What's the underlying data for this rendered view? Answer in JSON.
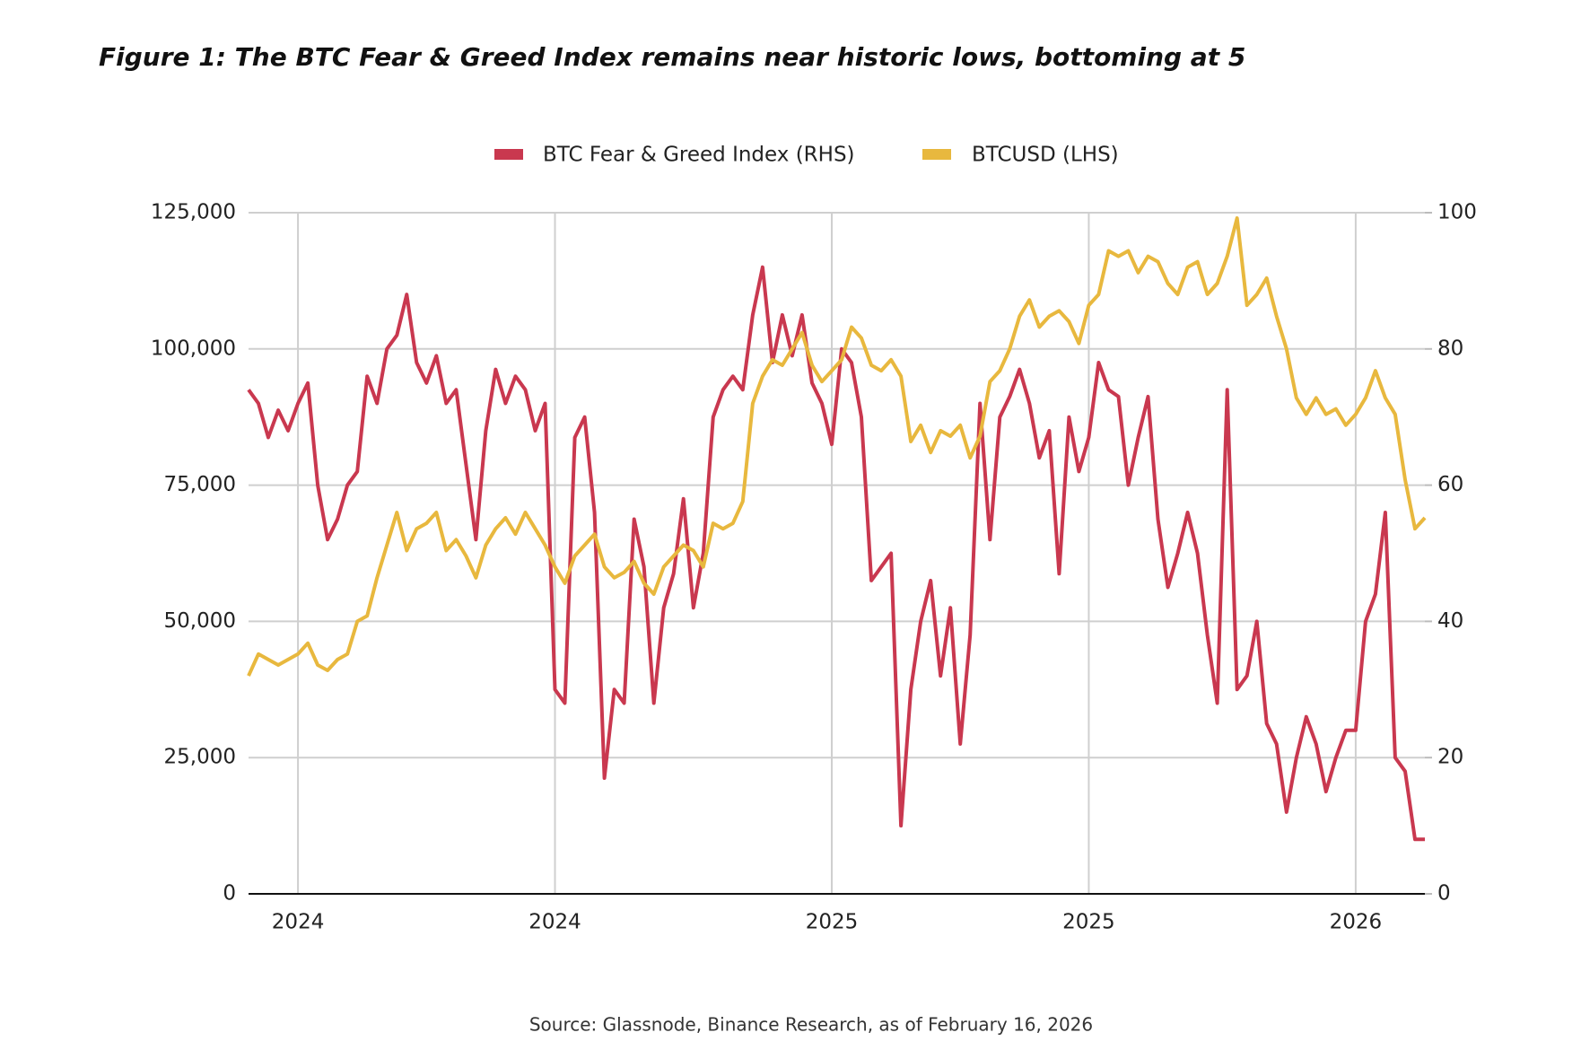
{
  "chart_data": {
    "type": "line",
    "title": "Figure 1: The BTC Fear & Greed Index remains near historic lows, bottoming at 5",
    "source": "Source: Glassnode, Binance Research, as of February 16, 2026",
    "categories": [
      null,
      null,
      null,
      null,
      null,
      "2024",
      null,
      null,
      null,
      null,
      null,
      null,
      null,
      null,
      null,
      null,
      null,
      null,
      null,
      null,
      null,
      null,
      null,
      null,
      null,
      null,
      null,
      null,
      null,
      null,
      null,
      "2024",
      null,
      null,
      null,
      null,
      null,
      null,
      null,
      null,
      null,
      null,
      null,
      null,
      null,
      null,
      null,
      null,
      null,
      null,
      null,
      null,
      null,
      null,
      null,
      null,
      null,
      null,
      null,
      "2025",
      null,
      null,
      null,
      null,
      null,
      null,
      null,
      null,
      null,
      null,
      null,
      null,
      null,
      null,
      null,
      null,
      null,
      null,
      null,
      null,
      null,
      null,
      null,
      null,
      null,
      "2025",
      null,
      null,
      null,
      null,
      null,
      null,
      null,
      null,
      null,
      null,
      null,
      null,
      null,
      null,
      null,
      null,
      null,
      null,
      null,
      null,
      null,
      null,
      null,
      null,
      null,
      null,
      "2026",
      null,
      null,
      null,
      null,
      null,
      null,
      null
    ],
    "series": [
      {
        "name": "BTC Fear & Greed Index (RHS)",
        "color": "#c9384f",
        "axis": "y2",
        "values": [
          74,
          72,
          67,
          71,
          68,
          72,
          75,
          60,
          52,
          55,
          60,
          62,
          76,
          72,
          80,
          82,
          88,
          78,
          75,
          79,
          72,
          74,
          63,
          52,
          68,
          77,
          72,
          76,
          74,
          68,
          72,
          30,
          28,
          67,
          70,
          56,
          17,
          30,
          28,
          55,
          48,
          28,
          42,
          47,
          58,
          42,
          50,
          70,
          74,
          76,
          74,
          85,
          92,
          78,
          85,
          79,
          85,
          75,
          72,
          66,
          80,
          78,
          70,
          46,
          48,
          50,
          10,
          30,
          40,
          46,
          32,
          42,
          22,
          38,
          72,
          52,
          70,
          73,
          77,
          72,
          64,
          68,
          47,
          70,
          62,
          67,
          78,
          74,
          73,
          60,
          67,
          73,
          55,
          45,
          50,
          56,
          50,
          38,
          28,
          74,
          30,
          32,
          40,
          25,
          22,
          12,
          20,
          26,
          22,
          15,
          20,
          24,
          24,
          40,
          44,
          56,
          20,
          18,
          8,
          8
        ]
      },
      {
        "name": "BTCUSD (LHS)",
        "color": "#e8b83e",
        "values": [
          40000,
          44000,
          43000,
          42000,
          43000,
          44000,
          46000,
          42000,
          41000,
          43000,
          44000,
          50000,
          51000,
          58000,
          64000,
          70000,
          63000,
          67000,
          68000,
          70000,
          63000,
          65000,
          62000,
          58000,
          64000,
          67000,
          69000,
          66000,
          70000,
          67000,
          64000,
          60000,
          57000,
          62000,
          64000,
          66000,
          60000,
          58000,
          59000,
          61000,
          57000,
          55000,
          60000,
          62000,
          64000,
          63000,
          60000,
          68000,
          67000,
          68000,
          72000,
          90000,
          95000,
          98000,
          97000,
          100000,
          103000,
          97000,
          94000,
          96000,
          98000,
          104000,
          102000,
          97000,
          96000,
          98000,
          95000,
          83000,
          86000,
          81000,
          85000,
          84000,
          86000,
          80000,
          84000,
          94000,
          96000,
          100000,
          106000,
          109000,
          104000,
          106000,
          107000,
          105000,
          101000,
          108000,
          110000,
          118000,
          117000,
          118000,
          114000,
          117000,
          116000,
          112000,
          110000,
          115000,
          116000,
          110000,
          112000,
          117000,
          124000,
          108000,
          110000,
          113000,
          106000,
          100000,
          91000,
          88000,
          91000,
          88000,
          89000,
          86000,
          88000,
          91000,
          96000,
          91000,
          88000,
          76000,
          67000,
          69000
        ]
      }
    ],
    "ylim": [
      0,
      125000
    ],
    "yticks": [
      0,
      {
        "value": 25000,
        "label": "25,000"
      },
      {
        "value": 50000,
        "label": "50,000"
      },
      {
        "value": 75000,
        "label": "75,000"
      },
      {
        "value": 100000,
        "label": "100,000"
      },
      {
        "value": 125000,
        "label": "125,000"
      }
    ],
    "y2lim": [
      0,
      100
    ],
    "y2ticks": [
      0,
      20,
      40,
      60,
      80,
      100
    ],
    "grid": true
  }
}
